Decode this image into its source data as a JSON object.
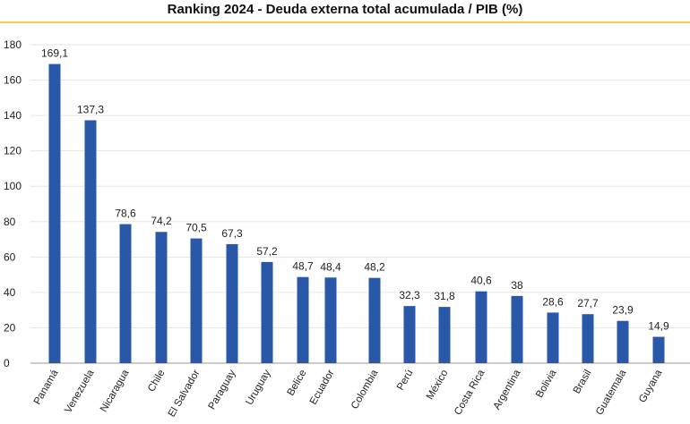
{
  "chart_data": {
    "type": "bar",
    "title": "Ranking 2024 - Deuda externa total acumulada / PIB (%)",
    "categories": [
      "Panamá",
      "Venezuela",
      "Nicaragua",
      "Chile",
      "El Salvador",
      "Paraguay",
      "Uruguay",
      "Belice",
      "Ecuador",
      "Colombia",
      "Perú",
      "México",
      "Costa Rica",
      "Argentina",
      "Bolivia",
      "Brasil",
      "Guatemala",
      "Guyana"
    ],
    "values": [
      169.1,
      137.3,
      78.6,
      74.2,
      70.5,
      67.3,
      57.2,
      48.7,
      48.4,
      48.2,
      32.3,
      31.8,
      40.6,
      38,
      28.6,
      27.7,
      23.9,
      14.9
    ],
    "data_labels": [
      "169,1",
      "137,3",
      "78,6",
      "74,2",
      "70,5",
      "67,3",
      "57,2",
      "48,7",
      "48,4",
      "48,2",
      "32,3",
      "31,8",
      "40,6",
      "38",
      "28,6",
      "27,7",
      "23,9",
      "14,9"
    ],
    "yticks": [
      "0",
      "20",
      "40",
      "60",
      "80",
      "100",
      "120",
      "140",
      "160",
      "180"
    ],
    "ylim": [
      0,
      180
    ],
    "grid": true,
    "xlabel": "",
    "ylabel": "",
    "colors": {
      "bar": "#2a58a8",
      "accent": "#f5cf4a",
      "grid": "#e6e6e6"
    }
  }
}
